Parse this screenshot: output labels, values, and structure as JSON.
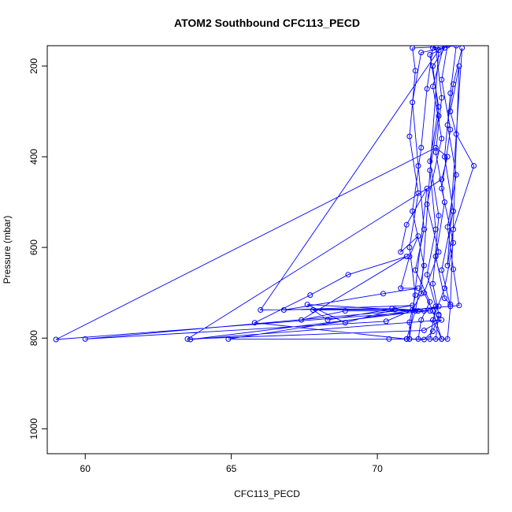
{
  "chart_data": {
    "type": "line",
    "title": "ATOM2 Southbound CFC113_PECD",
    "xlabel": "CFC113_PECD",
    "ylabel": "Pressure (mbar)",
    "xlim": [
      58.7,
      73.8
    ],
    "ylim": [
      1055,
      155
    ],
    "y_reversed": true,
    "x_ticks": [
      60,
      65,
      70
    ],
    "y_ticks": [
      200,
      400,
      600,
      800,
      1000
    ],
    "grid": false,
    "legend": "none",
    "series": [
      {
        "color": "#0000ff",
        "marker": "open-circle",
        "points": [
          [
            72.3,
            150
          ],
          [
            71.9,
            245
          ],
          [
            72.2,
            360
          ],
          [
            71.7,
            505
          ],
          [
            72.1,
            610
          ],
          [
            71.6,
            700
          ],
          [
            71.9,
            740
          ],
          [
            72.2,
            802
          ],
          [
            71.8,
            802
          ],
          [
            72.0,
            730
          ],
          [
            71.7,
            660
          ],
          [
            72.0,
            560
          ],
          [
            71.8,
            430
          ],
          [
            72.1,
            310
          ],
          [
            71.9,
            200
          ],
          [
            72.3,
            160
          ],
          [
            71.5,
            170
          ],
          [
            71.2,
            280
          ],
          [
            71.4,
            420
          ],
          [
            71.6,
            560
          ],
          [
            71.3,
            650
          ],
          [
            71.8,
            720
          ],
          [
            71.5,
            760
          ],
          [
            71.4,
            802
          ],
          [
            71.0,
            802
          ],
          [
            71.3,
            740
          ],
          [
            71.6,
            640
          ],
          [
            71.2,
            520
          ],
          [
            71.5,
            380
          ],
          [
            71.7,
            250
          ],
          [
            71.9,
            160
          ],
          [
            72.7,
            155
          ],
          [
            72.5,
            260
          ],
          [
            72.3,
            400
          ],
          [
            72.6,
            520
          ],
          [
            72.2,
            650
          ],
          [
            72.5,
            730
          ],
          [
            72.4,
            802
          ],
          [
            72.2,
            802
          ],
          [
            71.9,
            760
          ],
          [
            72.3,
            690
          ],
          [
            72.6,
            590
          ],
          [
            72.2,
            470
          ],
          [
            72.5,
            340
          ],
          [
            72.2,
            230
          ],
          [
            72.4,
            155
          ],
          [
            71.8,
            175
          ],
          [
            72.1,
            290
          ],
          [
            71.8,
            410
          ],
          [
            72.1,
            530
          ],
          [
            71.9,
            680
          ],
          [
            72.1,
            748
          ],
          [
            72.0,
            802
          ],
          [
            71.1,
            802
          ],
          [
            71.1,
            765
          ],
          [
            71.3,
            705
          ],
          [
            71.1,
            600
          ],
          [
            71.4,
            480
          ],
          [
            71.1,
            355
          ],
          [
            71.3,
            210
          ],
          [
            71.2,
            160
          ],
          [
            72.0,
            158
          ],
          [
            72.2,
            270
          ],
          [
            72.0,
            390
          ],
          [
            72.3,
            500
          ],
          [
            72.0,
            620
          ],
          [
            72.3,
            712
          ],
          [
            72.5,
            725
          ],
          [
            72.8,
            200
          ],
          [
            72.5,
            300
          ],
          [
            72.7,
            350
          ],
          [
            73.3,
            420
          ],
          [
            72.6,
            560
          ],
          [
            72.4,
            640
          ],
          [
            72.9,
            160
          ],
          [
            72.6,
            240
          ],
          [
            72.4,
            330
          ],
          [
            72.7,
            440
          ],
          [
            72.4,
            555
          ],
          [
            72.6,
            648
          ],
          [
            72.8,
            728
          ],
          [
            60.0,
            802
          ],
          [
            70.3,
            763
          ],
          [
            71.2,
            738
          ],
          [
            71.5,
            702
          ],
          [
            72.1,
            165
          ],
          [
            66.0,
            738
          ],
          [
            70.5,
            735
          ],
          [
            71.8,
            740
          ],
          [
            59.0,
            803
          ],
          [
            72.0,
            380
          ],
          [
            72.4,
            400
          ],
          [
            72.2,
            450
          ],
          [
            63.5,
            802
          ],
          [
            71.6,
            783
          ],
          [
            72.2,
            760
          ],
          [
            63.6,
            803
          ],
          [
            71.6,
            740
          ],
          [
            72.1,
            730
          ],
          [
            64.9,
            802
          ],
          [
            70.4,
            802
          ],
          [
            71.0,
            802
          ],
          [
            65.8,
            766
          ],
          [
            67.7,
            705
          ],
          [
            69.0,
            660
          ],
          [
            71.0,
            620
          ],
          [
            67.4,
            760
          ],
          [
            68.9,
            740
          ],
          [
            71.4,
            740
          ],
          [
            67.6,
            726
          ],
          [
            68.9,
            766
          ],
          [
            70.6,
            737
          ],
          [
            67.8,
            738
          ],
          [
            68.3,
            760
          ],
          [
            71.2,
            728
          ],
          [
            66.8,
            738
          ],
          [
            70.2,
            702
          ],
          [
            71.4,
            690
          ],
          [
            70.8,
            690
          ],
          [
            71.1,
            620
          ],
          [
            71.4,
            575
          ],
          [
            70.8,
            610
          ],
          [
            71.0,
            550
          ],
          [
            71.7,
            470
          ],
          [
            71.1,
            802
          ],
          [
            71.6,
            803
          ],
          [
            71.9,
            785
          ],
          [
            72.1,
            750
          ]
        ]
      }
    ]
  }
}
